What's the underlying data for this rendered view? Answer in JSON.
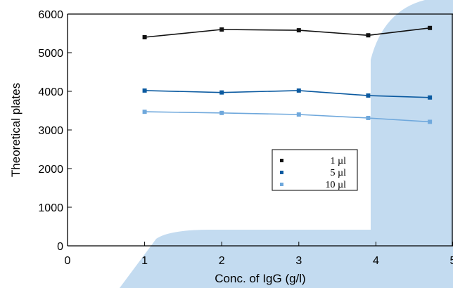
{
  "colors": {
    "background_shape": "#c3dbf0",
    "axis": "#000000"
  },
  "chart_data": {
    "type": "line",
    "title": "",
    "xlabel": "Conc. of IgG (g/l)",
    "ylabel": "Theoretical plates",
    "xlim": [
      0,
      5
    ],
    "ylim": [
      0,
      6000
    ],
    "x_ticks": [
      "0",
      "1",
      "2",
      "3",
      "4",
      "5"
    ],
    "y_ticks": [
      "0",
      "1000",
      "2000",
      "3000",
      "4000",
      "5000",
      "6000"
    ],
    "grid": false,
    "legend_position": "center-right",
    "x": [
      1,
      2,
      3,
      3.9,
      4.7
    ],
    "series": [
      {
        "name": "1 µl",
        "color": "#111111",
        "values": [
          5400,
          5600,
          5580,
          5450,
          5640
        ]
      },
      {
        "name": "5 µl",
        "color": "#0b5aa0",
        "values": [
          4020,
          3970,
          4020,
          3890,
          3840
        ]
      },
      {
        "name": "10 µl",
        "color": "#6fa8dc",
        "values": [
          3470,
          3440,
          3400,
          3310,
          3210
        ]
      }
    ]
  }
}
